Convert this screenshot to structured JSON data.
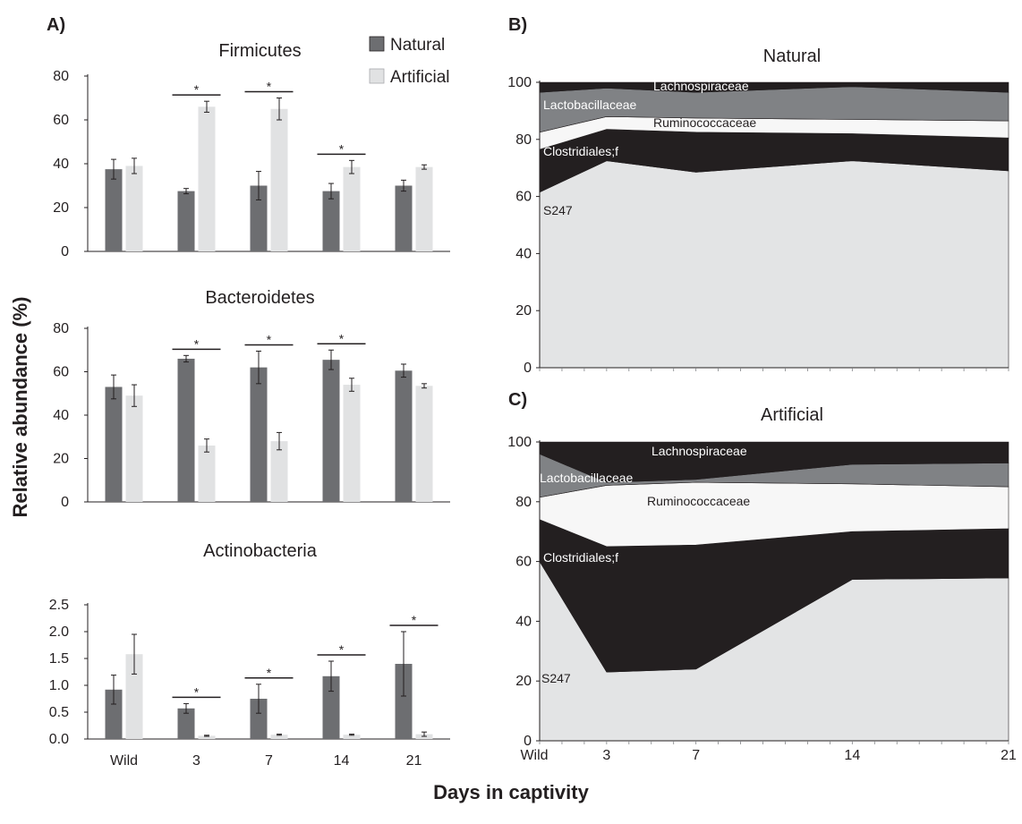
{
  "figure": {
    "ylabel": "Relative abundance (%)",
    "xlabel": "Days in captivity"
  },
  "legend": {
    "items": [
      {
        "label": "Natural",
        "color": "#6d6e71"
      },
      {
        "label": "Artificial",
        "color": "#e1e2e3"
      }
    ]
  },
  "chart_data": [
    {
      "panel": "A)",
      "type": "bar",
      "title": "Firmicutes",
      "categories": [
        "Wild",
        "3",
        "7",
        "14",
        "21"
      ],
      "ylim": [
        0,
        80
      ],
      "yticks": [
        "0",
        "20",
        "40",
        "60",
        "80"
      ],
      "series": [
        {
          "name": "Natural",
          "values": [
            37.5,
            27.5,
            30,
            27.5,
            30
          ],
          "errors": [
            4.5,
            1.2,
            6.5,
            3.5,
            2.5
          ]
        },
        {
          "name": "Artificial",
          "values": [
            39,
            66,
            65,
            38.5,
            38.5
          ],
          "errors": [
            3.5,
            2.5,
            5,
            3,
            1
          ]
        }
      ],
      "significance": [
        {
          "category": "3",
          "label": "*"
        },
        {
          "category": "7",
          "label": "*"
        },
        {
          "category": "14",
          "label": "*"
        }
      ]
    },
    {
      "type": "bar",
      "title": "Bacteroidetes",
      "categories": [
        "Wild",
        "3",
        "7",
        "14",
        "21"
      ],
      "ylim": [
        0,
        80
      ],
      "yticks": [
        "0",
        "20",
        "40",
        "60",
        "80"
      ],
      "series": [
        {
          "name": "Natural",
          "values": [
            53,
            66,
            62,
            65.5,
            60.5
          ],
          "errors": [
            5.5,
            1.5,
            7.5,
            4.5,
            3
          ]
        },
        {
          "name": "Artificial",
          "values": [
            49,
            26,
            28,
            54,
            53.5
          ],
          "errors": [
            5,
            3,
            4,
            3,
            1
          ]
        }
      ],
      "significance": [
        {
          "category": "3",
          "label": "*"
        },
        {
          "category": "7",
          "label": "*"
        },
        {
          "category": "14",
          "label": "*"
        }
      ]
    },
    {
      "type": "bar",
      "title": "Actinobacteria",
      "categories": [
        "Wild",
        "3",
        "7",
        "14",
        "21"
      ],
      "xticks": [
        "Wild",
        "3",
        "7",
        "14",
        "21"
      ],
      "ylim": [
        0,
        2.5
      ],
      "yticks": [
        "0.0",
        "0.5",
        "1.0",
        "1.5",
        "2.0",
        "2.5"
      ],
      "series": [
        {
          "name": "Natural",
          "values": [
            0.92,
            0.57,
            0.75,
            1.17,
            1.4
          ],
          "errors": [
            0.27,
            0.09,
            0.27,
            0.28,
            0.6
          ]
        },
        {
          "name": "Artificial",
          "values": [
            1.58,
            0.06,
            0.08,
            0.08,
            0.09
          ],
          "errors": [
            0.37,
            0.01,
            0.01,
            0.01,
            0.04
          ]
        }
      ],
      "significance": [
        {
          "category": "3",
          "label": "*"
        },
        {
          "category": "7",
          "label": "*"
        },
        {
          "category": "14",
          "label": "*"
        },
        {
          "category": "21",
          "label": "*"
        }
      ]
    },
    {
      "panel": "B)",
      "type": "area",
      "stacked": true,
      "title": "Natural",
      "x": [
        0,
        3,
        7,
        14,
        21
      ],
      "ylim": [
        0,
        100
      ],
      "yticks": [
        "0",
        "20",
        "40",
        "60",
        "80",
        "100"
      ],
      "series": [
        {
          "name": "S24-7",
          "label": "S247",
          "color": "#e3e4e5",
          "values": [
            61.5,
            72.5,
            68.5,
            72.5,
            69
          ]
        },
        {
          "name": "Clostridiales;f",
          "label": "Clostridiales;f",
          "color": "#231f20",
          "values": [
            15,
            11,
            14,
            9.5,
            11.5
          ]
        },
        {
          "name": "Ruminococcaceae",
          "label": "Ruminococcaceae",
          "color": "#f7f7f7",
          "values": [
            6,
            4.5,
            5,
            5,
            6
          ]
        },
        {
          "name": "Lactobacillaceae",
          "label": "Lactobacillaceae",
          "color": "#808285",
          "values": [
            14,
            10,
            9,
            11.5,
            10
          ]
        },
        {
          "name": "Lachnospiraceae",
          "label": "Lachnospiraceae",
          "color": "#231f20",
          "values": [
            3.5,
            2,
            3.5,
            1.5,
            3.5
          ]
        }
      ]
    },
    {
      "panel": "C)",
      "type": "area",
      "stacked": true,
      "title": "Artificial",
      "x": [
        0,
        3,
        7,
        14,
        21
      ],
      "xticks": [
        "Wild",
        "3",
        "7",
        "14",
        "21"
      ],
      "ylim": [
        0,
        100
      ],
      "yticks": [
        "0",
        "20",
        "40",
        "60",
        "80",
        "100"
      ],
      "series": [
        {
          "name": "S24-7",
          "label": "S247",
          "color": "#e3e4e5",
          "values": [
            60,
            23,
            24,
            54,
            54.5
          ]
        },
        {
          "name": "Clostridiales;f",
          "label": "Clostridiales;f",
          "color": "#231f20",
          "values": [
            14,
            42,
            41.5,
            16,
            16.5
          ]
        },
        {
          "name": "Ruminococcaceae",
          "label": "Ruminococcaceae",
          "color": "#f7f7f7",
          "values": [
            7.5,
            20.5,
            21,
            16,
            14
          ]
        },
        {
          "name": "Lactobacillaceae",
          "label": "Lactobacillaceae",
          "color": "#808285",
          "values": [
            14.5,
            1,
            1,
            6.5,
            8
          ]
        },
        {
          "name": "Lachnospiraceae",
          "label": "Lachnospiraceae",
          "color": "#231f20",
          "values": [
            4,
            13.5,
            12.5,
            7.5,
            7
          ]
        }
      ]
    }
  ]
}
